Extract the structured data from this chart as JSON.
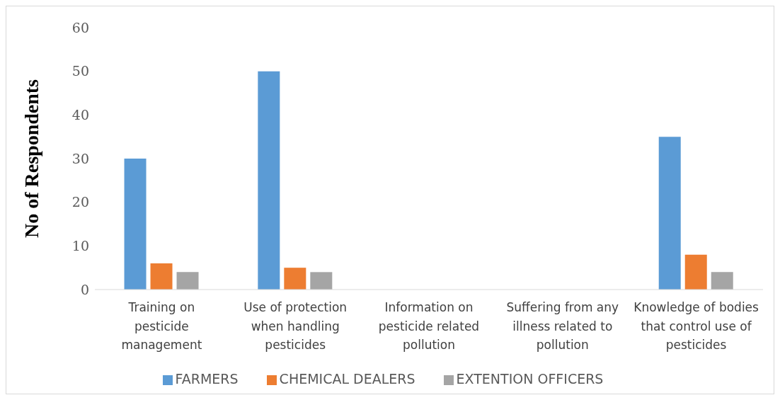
{
  "chart_data": {
    "type": "bar",
    "ylabel": "No of Respondents",
    "categories": [
      "Training on pesticide management",
      "Use of protection when handling pesticides",
      "Information on pesticide related pollution",
      "Suffering from any illness related to pollution",
      "Knowledge of bodies that control use of pesticides"
    ],
    "series": [
      {
        "name": "FARMERS",
        "color": "#5b9bd5",
        "values": [
          30,
          50,
          0,
          0,
          35
        ]
      },
      {
        "name": "CHEMICAL DEALERS",
        "color": "#ed7d31",
        "values": [
          6,
          5,
          0,
          0,
          8
        ]
      },
      {
        "name": "EXTENTION OFFICERS",
        "color": "#a5a5a5",
        "values": [
          4,
          4,
          0,
          0,
          4
        ]
      }
    ],
    "ylim": [
      0,
      60
    ],
    "yticks": [
      0,
      10,
      20,
      30,
      40,
      50,
      60
    ],
    "grid": false,
    "legend": "bottom"
  }
}
